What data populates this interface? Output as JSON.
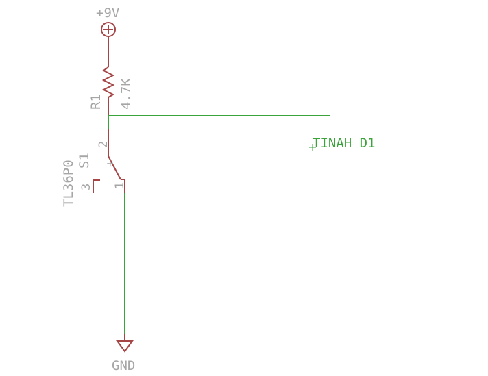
{
  "colors": {
    "wire": "#3aa33a",
    "symbol": "#a54545",
    "label": "#a6a6a6",
    "background": "#ffffff"
  },
  "supply": {
    "label": "+9V"
  },
  "resistor": {
    "name": "R1",
    "value": "4.7K"
  },
  "switch": {
    "name": "S1",
    "part": "TL36P0",
    "pin_1": "1",
    "pin_2": "2",
    "pin_3": "3",
    "plus_mark": "+"
  },
  "net_label": "TINAH D1",
  "ground": {
    "label": "GND"
  }
}
